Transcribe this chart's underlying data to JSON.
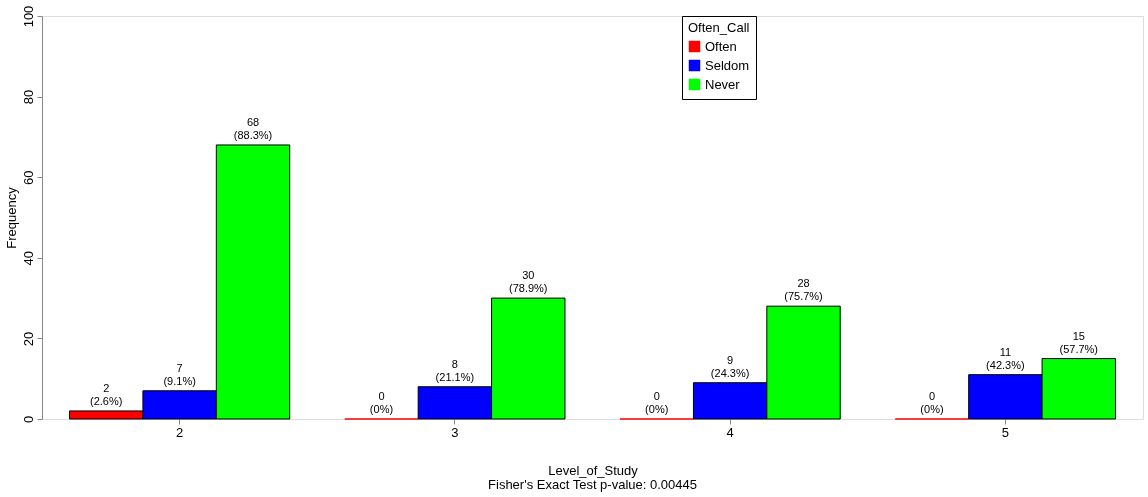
{
  "chart_data": {
    "type": "bar",
    "xlabel": "Level_of_Study",
    "ylabel": "Frequency",
    "legend_title": "Often_Call",
    "legend": "top",
    "annotations": [
      "Fisher's Exact Test p-value: 0.00445"
    ],
    "categories": [
      "2",
      "3",
      "4",
      "5"
    ],
    "ylim": [
      0,
      100
    ],
    "yticks": [
      0,
      20,
      40,
      60,
      80,
      100
    ],
    "grid": false,
    "series": [
      {
        "name": "Often",
        "color": "#ff0000",
        "values": [
          2,
          0,
          0,
          0
        ],
        "value_labels": [
          "2 (2.6%)",
          "0 (0%)",
          "0 (0%)",
          "0 (0%)"
        ]
      },
      {
        "name": "Seldom",
        "color": "#0000ff",
        "values": [
          7,
          8,
          9,
          11
        ],
        "value_labels": [
          "7 (9.1%)",
          "8 (21.1%)",
          "9 (24.3%)",
          "11 (42.3%)"
        ]
      },
      {
        "name": "Never",
        "color": "#00ff00",
        "values": [
          68,
          30,
          28,
          15
        ],
        "value_labels": [
          "68 (88.3%)",
          "30 (78.9%)",
          "28 (75.7%)",
          "15 (57.7%)"
        ]
      }
    ]
  }
}
